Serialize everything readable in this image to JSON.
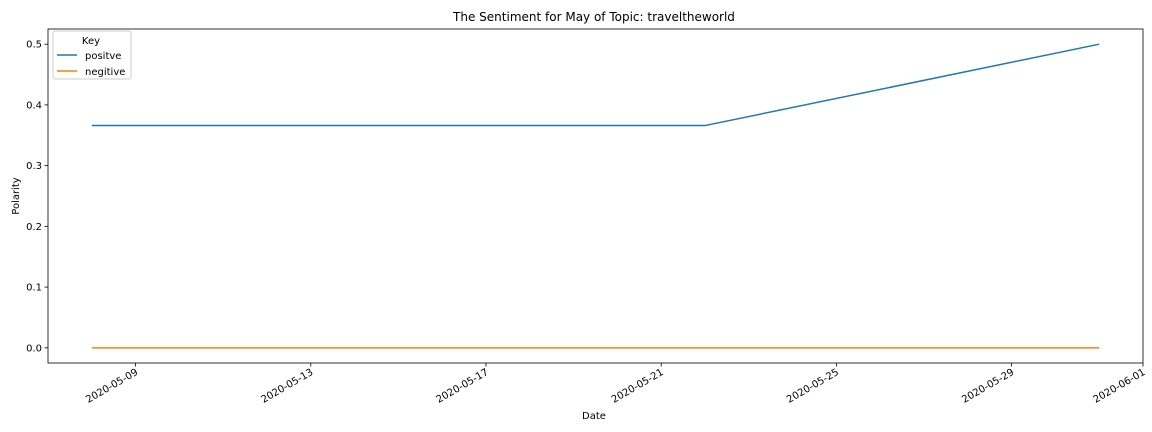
{
  "chart_data": {
    "type": "line",
    "title": "The Sentiment for May of Topic: traveltheworld",
    "xlabel": "Date",
    "ylabel": "Polarity",
    "x_type": "date",
    "xlim": [
      "2020-05-07",
      "2020-06-01"
    ],
    "ylim": [
      -0.025,
      0.525
    ],
    "x_ticks": [
      "2020-05-09",
      "2020-05-13",
      "2020-05-17",
      "2020-05-21",
      "2020-05-25",
      "2020-05-29",
      "2020-06-01"
    ],
    "y_ticks": [
      0.0,
      0.1,
      0.2,
      0.3,
      0.4,
      0.5
    ],
    "y_tick_labels": [
      "0.0",
      "0.1",
      "0.2",
      "0.3",
      "0.4",
      "0.5"
    ],
    "grid": false,
    "legend": {
      "title": "Key",
      "placement": "top-left"
    },
    "series": [
      {
        "name": "positve",
        "color": "#1f77b4",
        "points": [
          {
            "x": "2020-05-08",
            "y": 0.366
          },
          {
            "x": "2020-05-22",
            "y": 0.366
          },
          {
            "x": "2020-05-31",
            "y": 0.5
          }
        ]
      },
      {
        "name": "negitive",
        "color": "#ff7f0e",
        "points": [
          {
            "x": "2020-05-08",
            "y": 0.0
          },
          {
            "x": "2020-05-22",
            "y": 0.0
          },
          {
            "x": "2020-05-31",
            "y": 0.0
          }
        ]
      }
    ]
  }
}
